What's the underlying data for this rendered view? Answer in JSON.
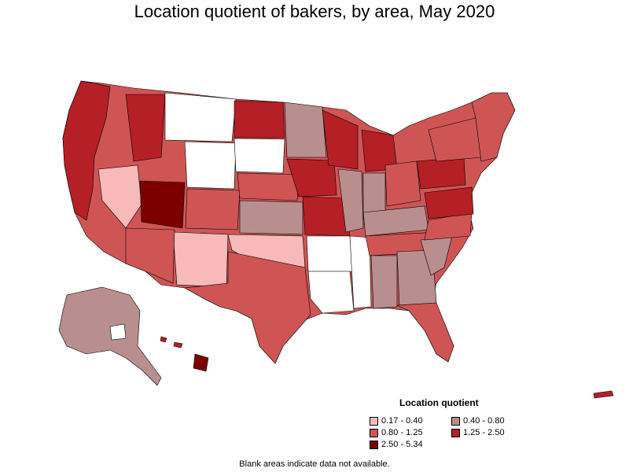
{
  "title": "Location quotient of bakers, by area, May 2020",
  "legend": {
    "title": "Location quotient",
    "items": [
      {
        "label": "0.17 - 0.40",
        "color": "#f8b9b9"
      },
      {
        "label": "0.40 - 0.80",
        "color": "#b98e8e"
      },
      {
        "label": "0.80 - 1.25",
        "color": "#cf5555"
      },
      {
        "label": "1.25 - 2.50",
        "color": "#b51f26"
      },
      {
        "label": "2.50 - 5.34",
        "color": "#7d0000"
      }
    ]
  },
  "footnote": "Blank areas indicate data not available.",
  "map": {
    "regions": [
      "contiguous-us",
      "alaska",
      "hawaii",
      "puerto-rico"
    ],
    "blank_color": "#ffffff",
    "border_color": "#000000"
  }
}
